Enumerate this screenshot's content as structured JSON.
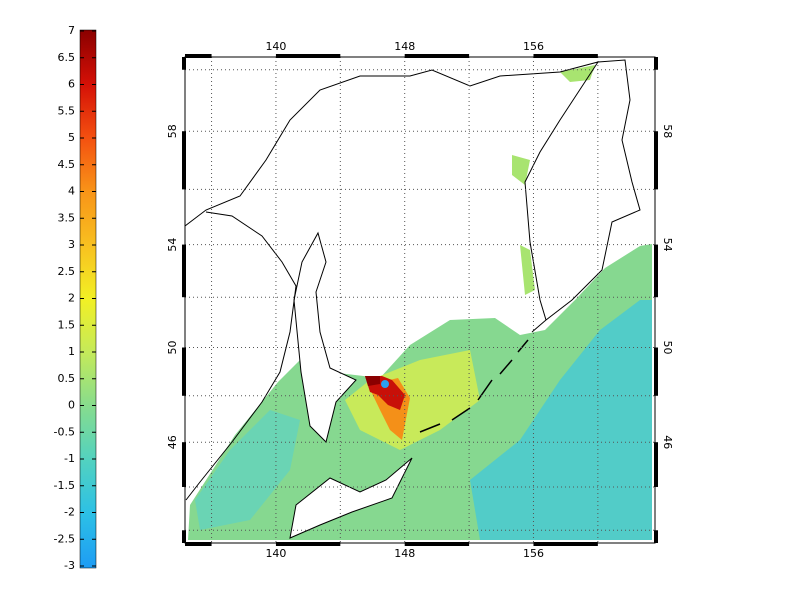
{
  "chart_data": {
    "type": "map",
    "colorbar": {
      "clim": [
        -3,
        7
      ],
      "ticks": [
        -3,
        -2.5,
        -2,
        -1.5,
        -1,
        -0.5,
        0,
        0.5,
        1,
        1.5,
        2,
        2.5,
        3,
        3.5,
        4,
        4.5,
        5,
        5.5,
        6,
        6.5,
        7
      ],
      "colors": [
        "#1e9cf4",
        "#2cc0e6",
        "#52d2c0",
        "#86dc8e",
        "#c4ea5a",
        "#f2f024",
        "#f8c020",
        "#f89418",
        "#f45010",
        "#d41006",
        "#8a0000"
      ]
    },
    "xlim": [
      134.35,
      163.55
    ],
    "xticks": [
      140,
      148,
      156
    ],
    "xgrid": [
      136,
      140,
      144,
      148,
      152,
      156,
      160
    ],
    "ylim": [
      41.4,
      60.4
    ],
    "yticks": [
      46,
      50,
      54,
      58
    ],
    "ygrid": [
      42,
      44,
      46,
      48,
      50,
      52,
      54,
      56,
      58,
      60
    ],
    "projection": "mercator",
    "grid": true
  }
}
